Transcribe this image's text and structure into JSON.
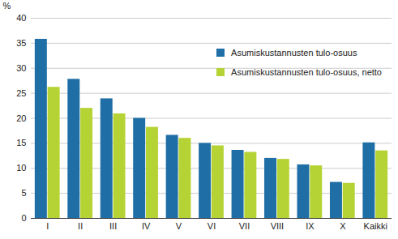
{
  "chart_data": {
    "type": "bar",
    "ylabel": "%",
    "categories": [
      "I",
      "II",
      "III",
      "IV",
      "V",
      "VI",
      "VII",
      "VIII",
      "IX",
      "X",
      "Kaikki"
    ],
    "series": [
      {
        "name": "Asumiskustannusten tulo-osuus",
        "color": "#1f6ea6",
        "values": [
          35.8,
          27.8,
          23.9,
          20.0,
          16.6,
          15.0,
          13.6,
          12.0,
          10.7,
          7.2,
          15.1
        ]
      },
      {
        "name": "Asumiskustannusten tulo-osuus, netto",
        "color": "#b5d334",
        "values": [
          26.2,
          22.0,
          20.9,
          18.2,
          16.0,
          14.5,
          13.2,
          11.8,
          10.5,
          7.0,
          13.5
        ]
      }
    ],
    "ylim": [
      0,
      40
    ],
    "yticks": [
      0,
      5,
      10,
      15,
      20,
      25,
      30,
      35,
      40
    ],
    "grid": true,
    "legend": "upper right"
  }
}
